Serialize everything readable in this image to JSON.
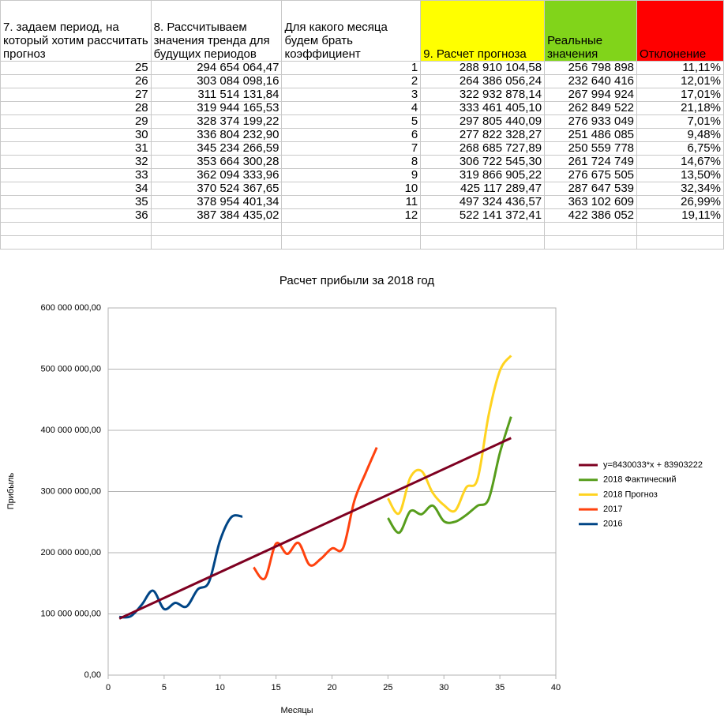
{
  "table": {
    "header": [
      "7. задаем период, на который хотим рассчитать прогноз",
      "8. Рассчитываем значения тренда для будущих периодов",
      "Для какого месяца будем брать коэффициент",
      "9. Расчет прогноза",
      "Реальные значения",
      "Отклонение"
    ],
    "rows": [
      [
        "25",
        "294 654 064,47",
        "1",
        "288 910 104,58",
        "256 798 898",
        "11,11%"
      ],
      [
        "26",
        "303 084 098,16",
        "2",
        "264 386 056,24",
        "232 640 416",
        "12,01%"
      ],
      [
        "27",
        "311 514 131,84",
        "3",
        "322 932 878,14",
        "267 994 924",
        "17,01%"
      ],
      [
        "28",
        "319 944 165,53",
        "4",
        "333 461 405,10",
        "262 849 522",
        "21,18%"
      ],
      [
        "29",
        "328 374 199,22",
        "5",
        "297 805 440,09",
        "276 933 049",
        "7,01%"
      ],
      [
        "30",
        "336 804 232,90",
        "6",
        "277 822 328,27",
        "251 486 085",
        "9,48%"
      ],
      [
        "31",
        "345 234 266,59",
        "7",
        "268 685 727,89",
        "250 559 778",
        "6,75%"
      ],
      [
        "32",
        "353 664 300,28",
        "8",
        "306 722 545,30",
        "261 724 749",
        "14,67%"
      ],
      [
        "33",
        "362 094 333,96",
        "9",
        "319 866 905,22",
        "276 675 505",
        "13,50%"
      ],
      [
        "34",
        "370 524 367,65",
        "10",
        "425 117 289,47",
        "287 647 539",
        "32,34%"
      ],
      [
        "35",
        "378 954 401,34",
        "11",
        "497 324 436,57",
        "363 102 609",
        "26,99%"
      ],
      [
        "36",
        "387 384 435,02",
        "12",
        "522 141 372,41",
        "422 386 052",
        "19,11%"
      ]
    ]
  },
  "chart_data": {
    "type": "line",
    "title": "Расчет прибыли за 2018 год",
    "x_label": "Месяцы",
    "y_label": "Прибыль",
    "xlim": [
      0,
      40
    ],
    "xticks": [
      0,
      5,
      10,
      15,
      20,
      25,
      30,
      35,
      40
    ],
    "ylim": [
      0,
      600000000
    ],
    "yticks": [
      {
        "value": 0,
        "label": "0,00"
      },
      {
        "value": 100000000,
        "label": "100 000 000,00"
      },
      {
        "value": 200000000,
        "label": "200 000 000,00"
      },
      {
        "value": 300000000,
        "label": "300 000 000,00"
      },
      {
        "value": 400000000,
        "label": "400 000 000,00"
      },
      {
        "value": 500000000,
        "label": "500 000 000,00"
      },
      {
        "value": 600000000,
        "label": "600 000 000,00"
      }
    ],
    "grid": true,
    "legend": "right",
    "series": [
      {
        "name": "y=8430033*x + 83903222",
        "color": "#7e0021",
        "x": [
          1,
          36
        ],
        "values": [
          92333255,
          387384410
        ],
        "smooth": false
      },
      {
        "name": "2018 Фактический",
        "color": "#579d1c",
        "x": [
          25,
          26,
          27,
          28,
          29,
          30,
          31,
          32,
          33,
          34,
          35,
          36
        ],
        "values": [
          256798898,
          232640416,
          267994924,
          262849522,
          276933049,
          251486085,
          250559778,
          261724749,
          276675505,
          287647539,
          363102609,
          422386052
        ],
        "smooth": true
      },
      {
        "name": "2018 Прогноз",
        "color": "#ffd320",
        "x": [
          25,
          26,
          27,
          28,
          29,
          30,
          31,
          32,
          33,
          34,
          35,
          36
        ],
        "values": [
          288910104.58,
          264386056.24,
          322932878.14,
          333461405.1,
          297805440.09,
          277822328.27,
          268685727.89,
          306722545.3,
          319866905.22,
          425117289.47,
          497324436.57,
          522141372.41
        ],
        "smooth": true
      },
      {
        "name": "2017",
        "color": "#ff420e",
        "x": [
          13,
          14,
          15,
          16,
          17,
          18,
          19,
          20,
          21,
          22,
          23,
          24
        ],
        "values": [
          176000000,
          158000000,
          215000000,
          198000000,
          216000000,
          180000000,
          190000000,
          207000000,
          208000000,
          285000000,
          330000000,
          372000000
        ],
        "smooth": true
      },
      {
        "name": "2016",
        "color": "#004586",
        "x": [
          1,
          2,
          3,
          4,
          5,
          6,
          7,
          8,
          9,
          10,
          11,
          12
        ],
        "values": [
          95000000,
          96000000,
          115000000,
          138000000,
          108000000,
          118000000,
          112000000,
          140000000,
          152000000,
          220000000,
          258000000,
          259000000
        ],
        "smooth": true
      }
    ]
  }
}
